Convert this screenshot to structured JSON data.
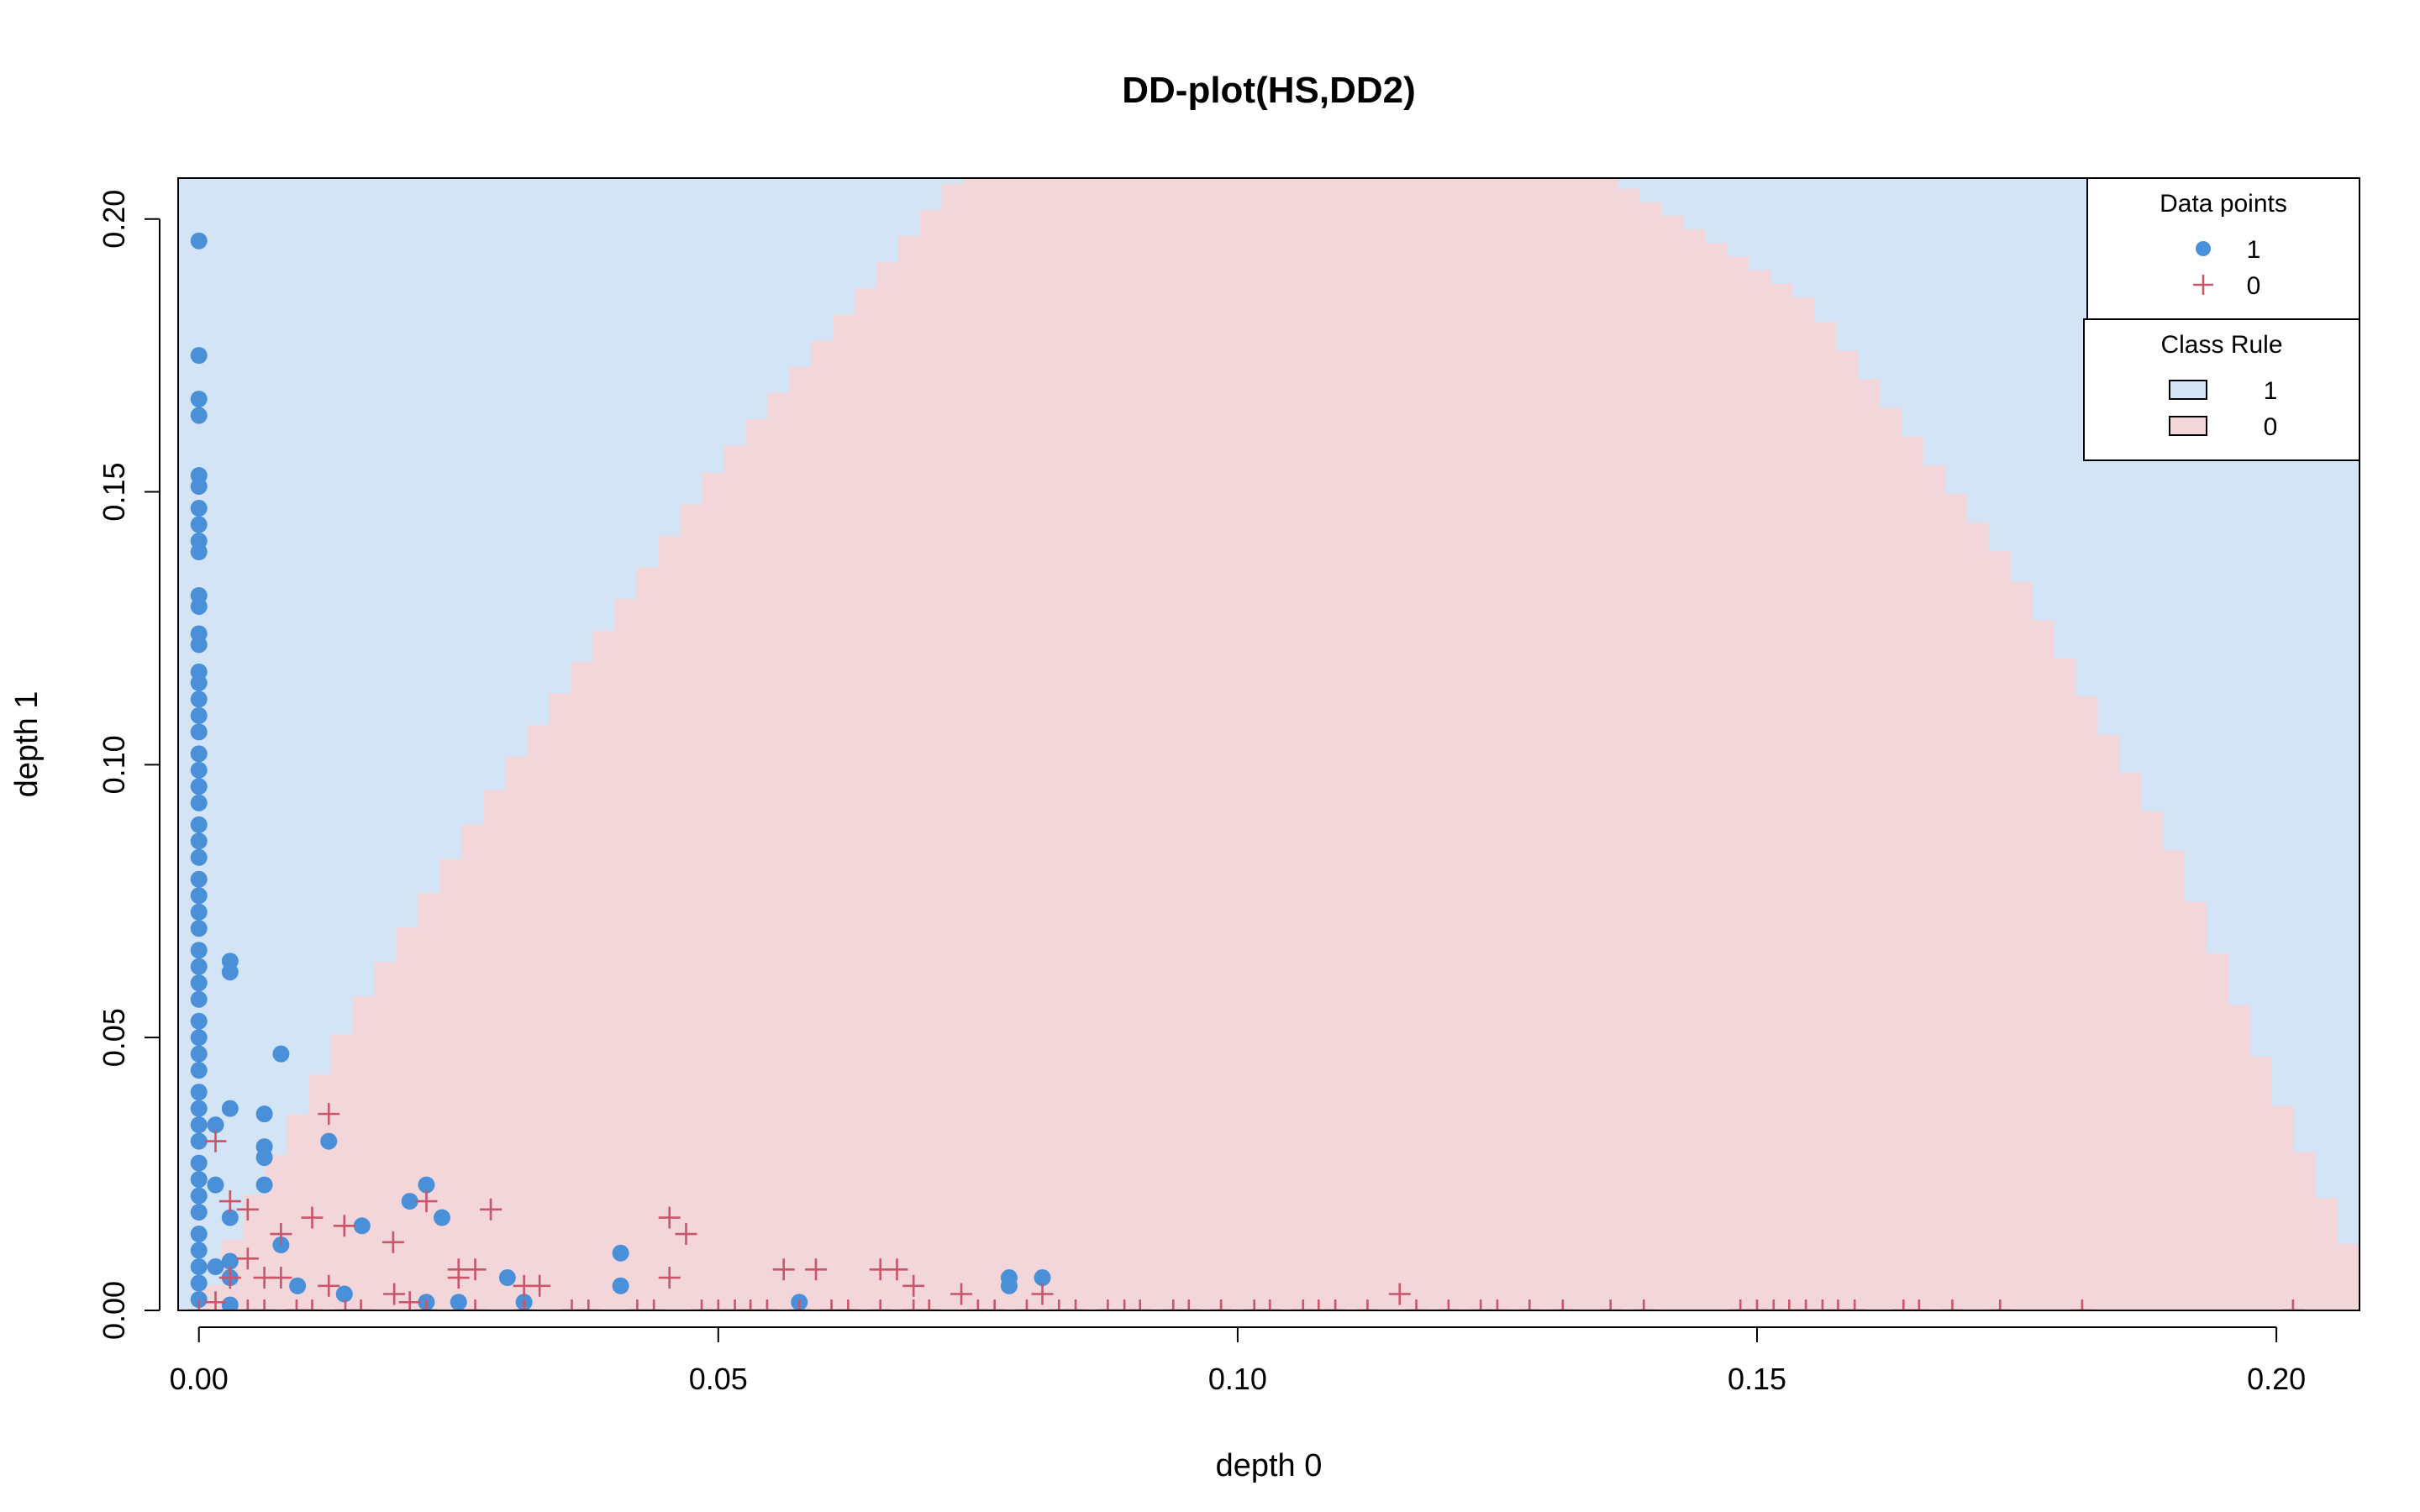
{
  "chart_data": {
    "type": "scatter",
    "title": "DD-plot(HS,DD2)",
    "xlabel": "depth 0",
    "ylabel": "depth 1",
    "xlim": [
      -0.002,
      0.208
    ],
    "ylim": [
      0.0,
      0.2075
    ],
    "xticks": [
      "0.00",
      "0.05",
      "0.10",
      "0.15",
      "0.20"
    ],
    "yticks": [
      "0.00",
      "0.05",
      "0.10",
      "0.15",
      "0.20"
    ],
    "grid": false,
    "colors": {
      "class1_point": "#4a90d9",
      "class0_point": "#c9556a",
      "class1_region": "#d2e4f5",
      "class0_region": "#f2d6da"
    },
    "class_rule": {
      "description_points": [
        [
          0.0,
          0.0
        ],
        [
          0.005,
          0.02
        ],
        [
          0.015,
          0.055
        ],
        [
          0.03,
          0.1
        ],
        [
          0.05,
          0.155
        ],
        [
          0.073,
          0.2075
        ],
        [
          0.136,
          0.2075
        ],
        [
          0.155,
          0.185
        ],
        [
          0.175,
          0.135
        ],
        [
          0.19,
          0.085
        ],
        [
          0.2,
          0.04
        ],
        [
          0.208,
          0.008
        ]
      ]
    },
    "series": [
      {
        "name": "1",
        "marker": "circle",
        "points": [
          [
            0.0,
            0.196
          ],
          [
            0.0,
            0.175
          ],
          [
            0.0,
            0.167
          ],
          [
            0.0,
            0.164
          ],
          [
            0.0,
            0.153
          ],
          [
            0.0,
            0.151
          ],
          [
            0.0,
            0.147
          ],
          [
            0.0,
            0.144
          ],
          [
            0.0,
            0.141
          ],
          [
            0.0,
            0.139
          ],
          [
            0.0,
            0.131
          ],
          [
            0.0,
            0.129
          ],
          [
            0.0,
            0.124
          ],
          [
            0.0,
            0.122
          ],
          [
            0.0,
            0.117
          ],
          [
            0.0,
            0.115
          ],
          [
            0.0,
            0.112
          ],
          [
            0.0,
            0.109
          ],
          [
            0.0,
            0.106
          ],
          [
            0.0,
            0.102
          ],
          [
            0.0,
            0.099
          ],
          [
            0.0,
            0.096
          ],
          [
            0.0,
            0.093
          ],
          [
            0.0,
            0.089
          ],
          [
            0.0,
            0.086
          ],
          [
            0.0,
            0.083
          ],
          [
            0.0,
            0.079
          ],
          [
            0.0,
            0.076
          ],
          [
            0.0,
            0.073
          ],
          [
            0.0,
            0.07
          ],
          [
            0.0,
            0.066
          ],
          [
            0.0,
            0.063
          ],
          [
            0.0,
            0.06
          ],
          [
            0.0,
            0.057
          ],
          [
            0.0,
            0.053
          ],
          [
            0.0,
            0.05
          ],
          [
            0.0,
            0.047
          ],
          [
            0.0,
            0.044
          ],
          [
            0.0,
            0.04
          ],
          [
            0.0,
            0.037
          ],
          [
            0.0,
            0.034
          ],
          [
            0.0,
            0.031
          ],
          [
            0.0,
            0.027
          ],
          [
            0.0,
            0.024
          ],
          [
            0.0,
            0.021
          ],
          [
            0.0,
            0.018
          ],
          [
            0.0,
            0.014
          ],
          [
            0.0,
            0.011
          ],
          [
            0.0,
            0.008
          ],
          [
            0.0,
            0.005
          ],
          [
            0.0,
            0.002
          ],
          [
            0.0016,
            0.034
          ],
          [
            0.0016,
            0.023
          ],
          [
            0.0016,
            0.008
          ],
          [
            0.003,
            0.064
          ],
          [
            0.003,
            0.062
          ],
          [
            0.003,
            0.037
          ],
          [
            0.003,
            0.017
          ],
          [
            0.003,
            0.009
          ],
          [
            0.003,
            0.006
          ],
          [
            0.003,
            0.001
          ],
          [
            0.0063,
            0.036
          ],
          [
            0.0063,
            0.03
          ],
          [
            0.0063,
            0.028
          ],
          [
            0.0063,
            0.023
          ],
          [
            0.0079,
            0.047
          ],
          [
            0.0079,
            0.012
          ],
          [
            0.0095,
            0.0045
          ],
          [
            0.0125,
            0.031
          ],
          [
            0.014,
            0.003
          ],
          [
            0.0157,
            0.0155
          ],
          [
            0.0203,
            0.02
          ],
          [
            0.0219,
            0.023
          ],
          [
            0.0219,
            0.0015
          ],
          [
            0.0234,
            0.017
          ],
          [
            0.025,
            0.0015
          ],
          [
            0.0297,
            0.006
          ],
          [
            0.0313,
            0.0015
          ],
          [
            0.0406,
            0.0105
          ],
          [
            0.0406,
            0.0045
          ],
          [
            0.0578,
            0.0015
          ],
          [
            0.078,
            0.0045
          ],
          [
            0.078,
            0.006
          ],
          [
            0.0812,
            0.006
          ]
        ]
      },
      {
        "name": "0",
        "marker": "plus",
        "points": [
          [
            0.0016,
            0.031
          ],
          [
            0.003,
            0.02
          ],
          [
            0.0047,
            0.0185
          ],
          [
            0.0016,
            0.0015
          ],
          [
            0.003,
            0.006
          ],
          [
            0.0047,
            0.0095
          ],
          [
            0.0063,
            0.006
          ],
          [
            0.0079,
            0.014
          ],
          [
            0.0079,
            0.006
          ],
          [
            0.0109,
            0.017
          ],
          [
            0.0125,
            0.036
          ],
          [
            0.0125,
            0.0045
          ],
          [
            0.014,
            0.0155
          ],
          [
            0.0187,
            0.0125
          ],
          [
            0.0219,
            0.02
          ],
          [
            0.025,
            0.0075
          ],
          [
            0.025,
            0.006
          ],
          [
            0.0266,
            0.0075
          ],
          [
            0.0281,
            0.0185
          ],
          [
            0.0313,
            0.0045
          ],
          [
            0.0328,
            0.0045
          ],
          [
            0.0453,
            0.017
          ],
          [
            0.0469,
            0.014
          ],
          [
            0.0453,
            0.006
          ],
          [
            0.0563,
            0.0075
          ],
          [
            0.0594,
            0.0075
          ],
          [
            0.0656,
            0.0075
          ],
          [
            0.0672,
            0.0075
          ],
          [
            0.0688,
            0.0045
          ],
          [
            0.0734,
            0.003
          ],
          [
            0.0812,
            0.003
          ],
          [
            0.1156,
            0.003
          ],
          [
            0.0188,
            0.003
          ],
          [
            0.0203,
            0.0015
          ],
          [
            0.0,
            0.0
          ],
          [
            0.0047,
            0.0
          ],
          [
            0.0063,
            0.0
          ],
          [
            0.0094,
            0.0
          ],
          [
            0.0109,
            0.0
          ],
          [
            0.0141,
            0.0
          ],
          [
            0.0156,
            0.0
          ],
          [
            0.0219,
            0.0
          ],
          [
            0.0266,
            0.0
          ],
          [
            0.0313,
            0.0
          ],
          [
            0.0359,
            0.0
          ],
          [
            0.0375,
            0.0
          ],
          [
            0.0422,
            0.0
          ],
          [
            0.0438,
            0.0
          ],
          [
            0.0484,
            0.0
          ],
          [
            0.05,
            0.0
          ],
          [
            0.0516,
            0.0
          ],
          [
            0.0531,
            0.0
          ],
          [
            0.0547,
            0.0
          ],
          [
            0.0578,
            0.0
          ],
          [
            0.0609,
            0.0
          ],
          [
            0.0625,
            0.0
          ],
          [
            0.0656,
            0.0
          ],
          [
            0.0688,
            0.0
          ],
          [
            0.0703,
            0.0
          ],
          [
            0.075,
            0.0
          ],
          [
            0.0766,
            0.0
          ],
          [
            0.0797,
            0.0
          ],
          [
            0.0828,
            0.0
          ],
          [
            0.0844,
            0.0
          ],
          [
            0.0875,
            0.0
          ],
          [
            0.0891,
            0.0
          ],
          [
            0.0906,
            0.0
          ],
          [
            0.0938,
            0.0
          ],
          [
            0.0953,
            0.0
          ],
          [
            0.0984,
            0.0
          ],
          [
            0.1016,
            0.0
          ],
          [
            0.1031,
            0.0
          ],
          [
            0.1063,
            0.0
          ],
          [
            0.1078,
            0.0
          ],
          [
            0.1094,
            0.0
          ],
          [
            0.1125,
            0.0
          ],
          [
            0.1172,
            0.0
          ],
          [
            0.1203,
            0.0
          ],
          [
            0.1234,
            0.0
          ],
          [
            0.125,
            0.0
          ],
          [
            0.1281,
            0.0
          ],
          [
            0.1313,
            0.0
          ],
          [
            0.1359,
            0.0
          ],
          [
            0.1391,
            0.0
          ],
          [
            0.1484,
            0.0
          ],
          [
            0.15,
            0.0
          ],
          [
            0.1516,
            0.0
          ],
          [
            0.1531,
            0.0
          ],
          [
            0.1547,
            0.0
          ],
          [
            0.1563,
            0.0
          ],
          [
            0.1578,
            0.0
          ],
          [
            0.1594,
            0.0
          ],
          [
            0.1641,
            0.0
          ],
          [
            0.1656,
            0.0
          ],
          [
            0.1688,
            0.0
          ],
          [
            0.1734,
            0.0
          ],
          [
            0.1813,
            0.0
          ],
          [
            0.2016,
            0.0
          ]
        ]
      }
    ],
    "legends": [
      {
        "title": "Data points",
        "position": "top-right",
        "entries": [
          {
            "label": "1",
            "symbol": "circle",
            "color": "#4a90d9"
          },
          {
            "label": "0",
            "symbol": "plus",
            "color": "#c9556a"
          }
        ]
      },
      {
        "title": "Class Rule",
        "position": "top-right",
        "entries": [
          {
            "label": "1",
            "symbol": "box",
            "color": "#d2e4f5"
          },
          {
            "label": "0",
            "symbol": "box",
            "color": "#f2d6da"
          }
        ]
      }
    ]
  }
}
